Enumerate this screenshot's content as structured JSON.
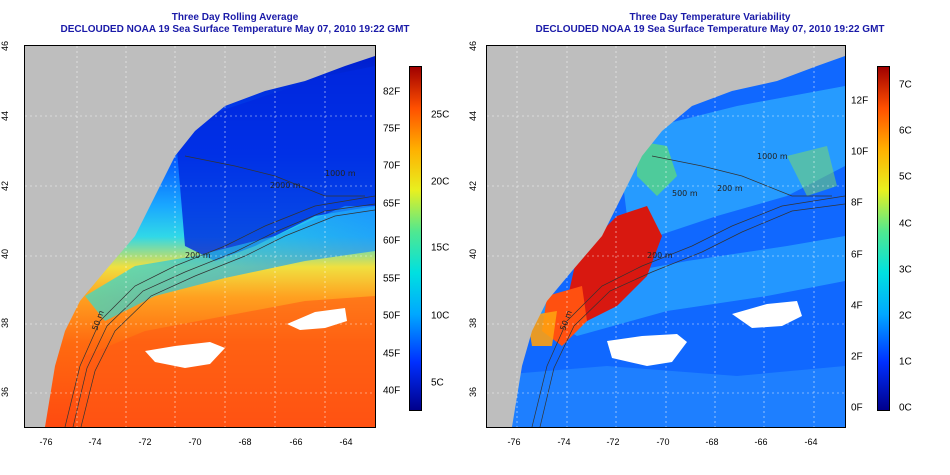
{
  "left_panel": {
    "title_line1": "Three Day Rolling Average",
    "title_line2": "DECLOUDED NOAA 19 Sea Surface Temperature May 07, 2010 19:22 GMT",
    "colorbar": {
      "fahrenheit": [
        "82F",
        "75F",
        "70F",
        "65F",
        "60F",
        "55F",
        "50F",
        "45F",
        "40F"
      ],
      "celsius": [
        "25C",
        "20C",
        "15C",
        "10C",
        "5C"
      ]
    },
    "contour_labels": [
      "2000 m",
      "1000 m",
      "200 m",
      "50 m"
    ]
  },
  "right_panel": {
    "title_line1": "Three Day Temperature Variability",
    "title_line2": "DECLOUDED NOAA 19 Sea Surface Temperature May 07, 2010 19:22 GMT",
    "colorbar": {
      "fahrenheit": [
        "12F",
        "10F",
        "8F",
        "6F",
        "4F",
        "2F",
        "0F"
      ],
      "celsius": [
        "7C",
        "6C",
        "5C",
        "4C",
        "3C",
        "2C",
        "1C",
        "0C"
      ]
    },
    "contour_labels": [
      "1000 m",
      "200 m",
      "200 m",
      "500 m",
      "50 m"
    ]
  },
  "axes": {
    "lat_ticks": [
      "46",
      "44",
      "42",
      "40",
      "38",
      "36"
    ],
    "lon_ticks": [
      "-76",
      "-74",
      "-72",
      "-70",
      "-68",
      "-66",
      "-64"
    ]
  },
  "colors": {
    "title": "#1a1aa8",
    "land": "#bebebe",
    "missing": "#ffffff"
  }
}
